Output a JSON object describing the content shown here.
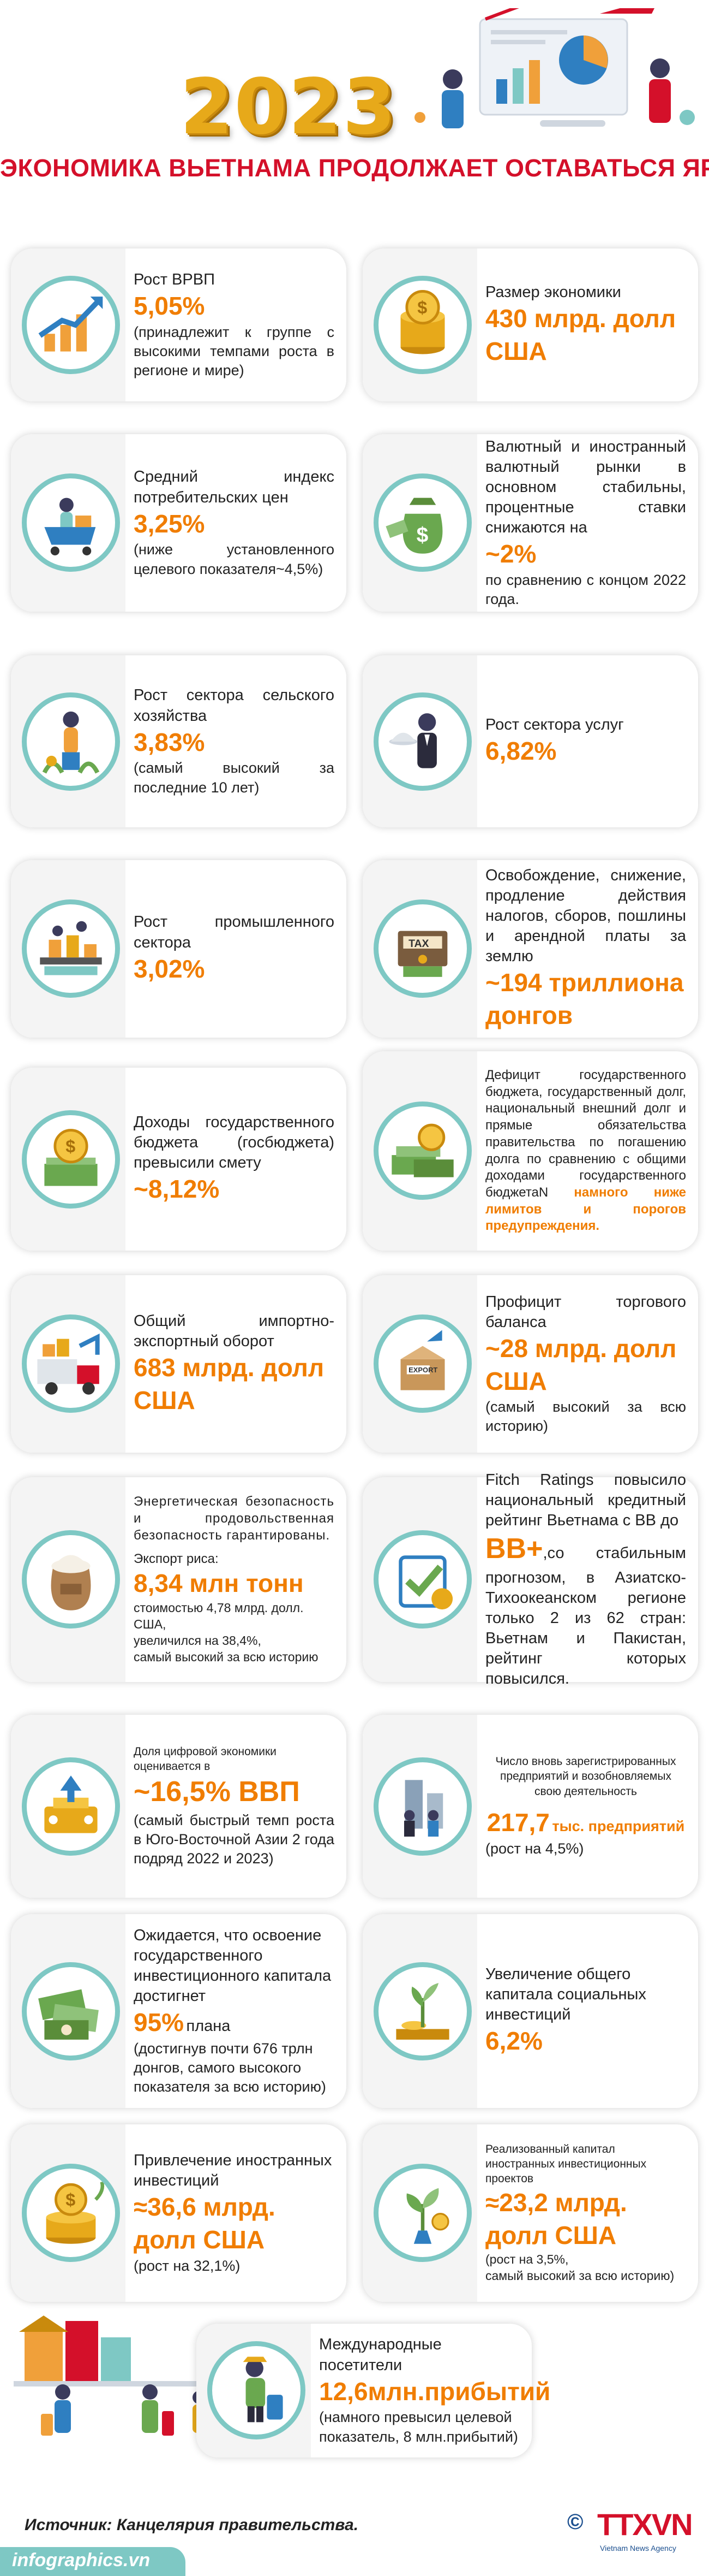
{
  "header": {
    "year": "2023",
    "title": "ЭКОНОМИКА ВЬЕТНАМА ПРОДОЛЖАЕТ ОСТАВАТЬСЯ ЯРКИМ ПЯТНОМ"
  },
  "cards": {
    "gdp": {
      "label": "Рост ВРВП",
      "value": "5,05%",
      "note": "(принадлежит к группе с высокими темпами роста в регионе и мире)",
      "icon": "chart-growth-icon"
    },
    "economy_size": {
      "label": "Размер экономики",
      "value": "430 млрд. долл США",
      "icon": "coins-icon"
    },
    "cpi": {
      "label": "Средний индекс потребительских цен",
      "value": "3,25%",
      "note": "(ниже установленного целевого показателя~4,5%)",
      "icon": "shopping-cart-icon"
    },
    "fx": {
      "label": "Валютный и иностранный валютный рынки в основном стабильны, процентные ставки снижаются на",
      "value": "~2%",
      "note": "по сравнению с концом 2022 года.",
      "icon": "money-bag-icon"
    },
    "agriculture": {
      "label": "Рост сектора сельского хозяйства",
      "value": "3,83%",
      "note": "(самый высокий за последние 10 лет)",
      "icon": "farmer-icon"
    },
    "services": {
      "label": "Рост сектора услуг",
      "value": "6,82%",
      "icon": "waiter-icon"
    },
    "industry": {
      "label": "Рост промышленного сектора",
      "value": "3,02%",
      "icon": "factory-icon"
    },
    "tax": {
      "label": "Освобождение, снижение, продление действия налогов, сборов, пошлины и арендной платы за землю",
      "value": "~194 триллиона донгов",
      "icon": "tax-icon"
    },
    "budget_revenue": {
      "label": "Доходы государственного бюджета (госбюджета) превысили смету",
      "value": "~8,12%",
      "icon": "coin-stack-icon"
    },
    "debt": {
      "label": "Дефицит государственного бюджета, государственный долг, национальный внешний долг и прямые обязательства правительства по погашению долга по сравнению с общими доходами государственного бюджетаN",
      "highlight": "намного ниже лимитов и порогов предупреждения.",
      "icon": "cash-stack-icon"
    },
    "trade": {
      "label": "Общий импортно-экспортный оборот",
      "value": "683 млрд. долл США",
      "icon": "truck-icon"
    },
    "trade_surplus": {
      "label": "Профицит торгового баланса",
      "value": "~28 млрд. долл США",
      "note": "(самый высокий за всю историю)",
      "icon": "export-box-icon"
    },
    "food": {
      "label": "Энергетическая безопасность и продовольственная безопасность гарантированы.",
      "sublabel": "Экспорт риса:",
      "value": "8,34 млн тонн",
      "note": "стоимостью 4,78 млрд. долл. США,",
      "note2": "увеличился на 38,4%,",
      "note3": "самый высокий за всю историю",
      "icon": "rice-sack-icon"
    },
    "fitch": {
      "label": "Fitch Ratings повысило национальный кредитный рейтинг Вьетнама с BB до",
      "value": "BB+",
      "note": ",со стабильным прогнозом, в Азиатско-Тихоокеанском регионе только 2 из 62 стран: Вьетнам и Пакистан, рейтинг которых повысился.",
      "icon": "rating-check-icon"
    },
    "digital": {
      "label": "Доля цифровой экономики оценивается в",
      "value": "~16,5% ВВП",
      "note": "(самый быстрый темп роста в Юго-Восточной Азии 2 года подряд 2022 и 2023)",
      "icon": "digital-economy-icon"
    },
    "enterprises": {
      "label": "Число вновь зарегистрированных предприятий и возобновляемых свою деятельность",
      "value": "217,7",
      "unit": "тыс. предприятий",
      "note": "(рост на 4,5%)",
      "icon": "business-people-icon"
    },
    "public_investment": {
      "label": "Ожидается, что освоение государственного инвестиционного капитала достигнет",
      "value": "95%",
      "unit": "плана",
      "note": "(достигнув почти 676 трлн донгов, самого высокого показателя за всю историю)",
      "icon": "banknotes-icon"
    },
    "social_investment": {
      "label": "Увеличение общего капитала социальных инвестиций",
      "value": "6,2%",
      "icon": "plant-coins-icon"
    },
    "fdi_attracted": {
      "label": "Привлечение иностранных инвестиций",
      "value": "≈36,6 млрд. долл США",
      "note": "(рост на 32,1%)",
      "icon": "dollar-coins-icon"
    },
    "fdi_realized": {
      "label": "Реализованный капитал иностранных инвестиционных проектов",
      "value": "≈23,2 млрд. долл США",
      "note": "(рост на 3,5%,",
      "note2": "самый высокий за всю историю)",
      "icon": "money-tree-icon"
    },
    "visitors": {
      "label": "Международные посетители",
      "value": "12,6млн.прибытий",
      "note": "(намного превысил целевой показатель, 8 млн.прибытий)",
      "icon": "tourist-icon"
    }
  },
  "footer": {
    "source": "Источник: Канцелярия правительства.",
    "site": "infographics.vn",
    "logo_copy": "©",
    "logo": "TTXVN",
    "logo_sub": "Vietnam News Agency"
  },
  "colors": {
    "accent": "#f07d00",
    "title": "#d4102a",
    "teal": "#7ec8c4",
    "year": "#e7a91a"
  }
}
